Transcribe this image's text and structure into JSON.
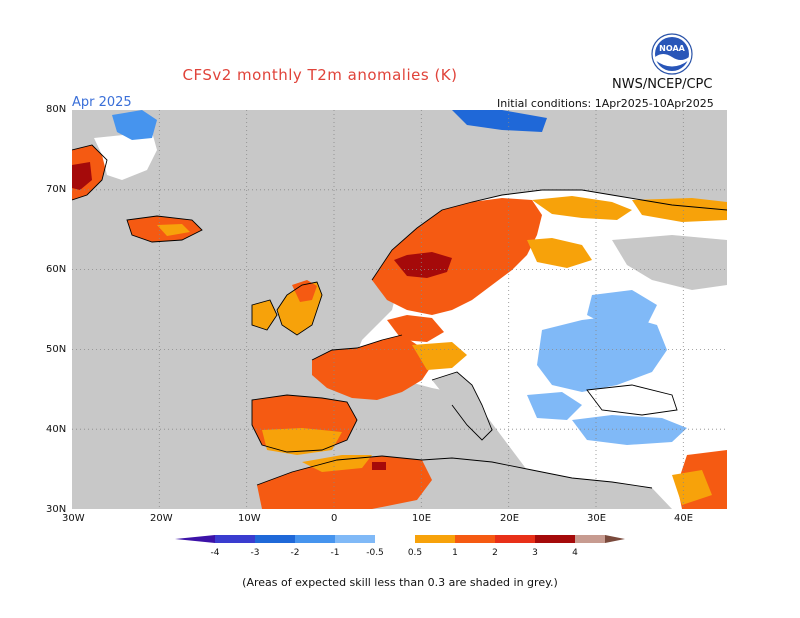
{
  "title": "CFSv2 monthly T2m anomalies (K)",
  "agency": "NWS/NCEP/CPC",
  "logo_text": "NOAA",
  "period": "Apr 2025",
  "initial_conditions": "Initial conditions: 1Apr2025-10Apr2025",
  "footnote": "(Areas of expected skill less than 0.3 are shaded in grey.)",
  "map": {
    "lon_range": [
      -30,
      45
    ],
    "lat_range": [
      30,
      80
    ],
    "lat_labels": [
      "80N",
      "70N",
      "60N",
      "50N",
      "40N",
      "30N"
    ],
    "lon_labels": [
      "30W",
      "20W",
      "10W",
      "0",
      "10E",
      "20E",
      "30E",
      "40E"
    ],
    "grid": "dotted",
    "background_color": "#c8c8c8",
    "no_anomaly_color": "#ffffff"
  },
  "legend": {
    "tick_labels": [
      "-4",
      "-3",
      "-2",
      "-1",
      "-0.5",
      "0.5",
      "1",
      "2",
      "3",
      "4"
    ],
    "colors": [
      "#3c12a8",
      "#3a3ccf",
      "#1f68d8",
      "#4694ee",
      "#80b9f7",
      "#ffffff",
      "#f7a20a",
      "#f55a12",
      "#e83018",
      "#a50a0a",
      "#c79b90",
      "#7a4a3c"
    ]
  }
}
